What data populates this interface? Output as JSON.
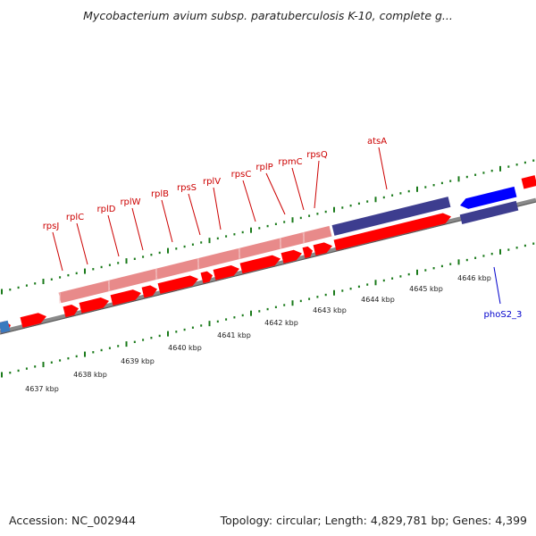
{
  "title": "Mycobacterium avium subsp. paratuberculosis K-10, complete g...",
  "footer": {
    "accession": "Accession: NC_002944",
    "stats": "Topology: circular; Length: 4,829,781 bp; Genes: 4,399"
  },
  "colors": {
    "forward_gene": "#ff0000",
    "forward_feature_pale": "#e88a8a",
    "reverse_gene": "#0000ff",
    "reverse_feature": "#3d3d8f",
    "backbone": "#808080",
    "tick": "#1a7a1a",
    "label_forward": "#cc0000",
    "label_reverse": "#0000cc"
  },
  "genes_forward": [
    "rpsJ",
    "rplC",
    "rplD",
    "rplW",
    "rplB",
    "rpsS",
    "rplV",
    "rpsC",
    "rplP",
    "rpmC",
    "rpsQ",
    "atsA"
  ],
  "genes_reverse": [
    "phoS2_3"
  ],
  "kbp_labels": [
    "4637 kbp",
    "4638 kbp",
    "4639 kbp",
    "4640 kbp",
    "4641 kbp",
    "4642 kbp",
    "4643 kbp",
    "4644 kbp",
    "4645 kbp",
    "4646 kbp"
  ]
}
